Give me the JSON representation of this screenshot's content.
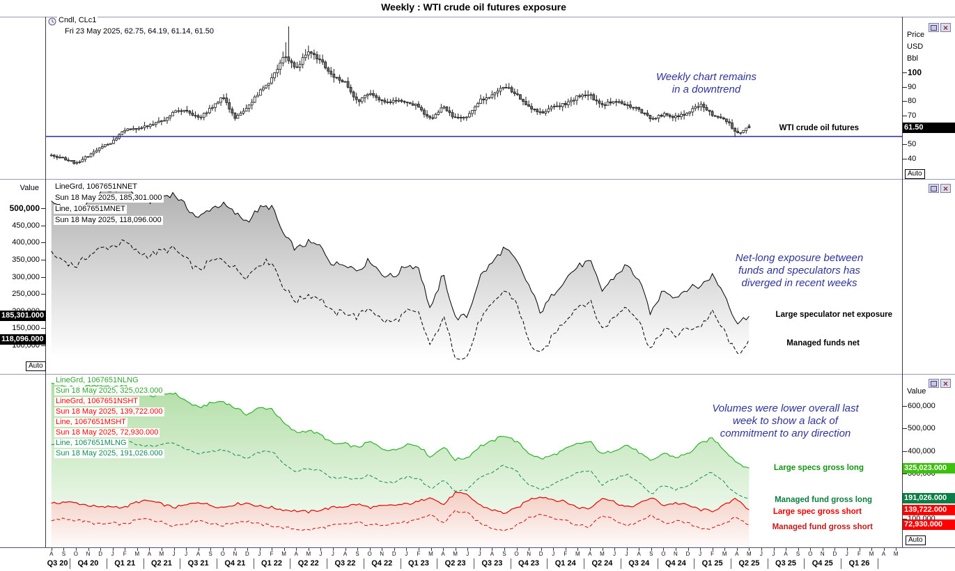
{
  "title": "Weekly : WTI crude oil futures exposure",
  "colors": {
    "annotation_navy": "#2e3499",
    "support_line": "#00007e",
    "candle_down_fill": "#6e6e6e",
    "nnet_line": "#000000",
    "nlng_line": "#2db22d",
    "mlng_line": "#108a5a",
    "short_line": "#e60000",
    "box_black": "#000000",
    "box_bright_green": "#3fbf0f",
    "box_dark_green": "#0b7e47",
    "box_red": "#ff0000"
  },
  "panel1": {
    "legend": [
      "Cndl, CLc1",
      "Fri 23 May 2025, 62.75, 64.19, 61.14, 61.50"
    ],
    "axis_unit": [
      "Price",
      "USD",
      "Bbl"
    ],
    "last_price_label": "61.50",
    "auto_label": "Auto",
    "annotation": [
      "Weekly chart remains",
      "in a downtrend"
    ],
    "series_label": "WTI crude oil futures"
  },
  "panel2": {
    "value_axis_label": "Value",
    "legend": [
      "LineGrd, 1067651NNET",
      "Sun 18 May 2025, 185,301.000",
      "Line, 1067651MNET",
      "Sun 18 May 2025, 118,096.000"
    ],
    "value_boxes": [
      "185,301.000",
      "118,096.000"
    ],
    "auto_label": "Auto",
    "annotation": [
      "Net-long exposure between",
      "funds and speculators has",
      "diverged in recent weeks"
    ],
    "series_labels": [
      "Large speculator net exposure",
      "Managed funds net"
    ]
  },
  "panel3": {
    "value_axis_label": "Value",
    "legend": [
      {
        "text": "LineGrd, 1067651NLNG",
        "color": "#2fa32f"
      },
      {
        "text": "Sun 18 May 2025, 325,023.000",
        "color": "#2fa32f"
      },
      {
        "text": "LineGrd, 1067651NSHT",
        "color": "#ff0000"
      },
      {
        "text": "Sun 18 May 2025, 139,722.000",
        "color": "#ff0000"
      },
      {
        "text": "Line, 1067651MSHT",
        "color": "#ff0000"
      },
      {
        "text": "Sun 18 May 2025, 72,930.000",
        "color": "#ff0000"
      },
      {
        "text": "Line, 1067651MLNG",
        "color": "#108a5a"
      },
      {
        "text": "Sun 18 May 2025, 191,026.000",
        "color": "#108a5a"
      }
    ],
    "value_boxes": [
      {
        "text": "325,023.000",
        "bg": "#3fbf0f"
      },
      {
        "text": "191,026.000",
        "bg": "#0b7e47"
      },
      {
        "text": "139,722.000",
        "bg": "#ff0000"
      },
      {
        "text": "72,930.000",
        "bg": "#ff0000"
      }
    ],
    "auto_label": "Auto",
    "annotation": [
      "Volumes were lower overall last",
      "week to show a lack of",
      "commitment to any direction"
    ],
    "series_labels": [
      {
        "text": "Large specs gross long",
        "color": "#149414"
      },
      {
        "text": "Managed fund gross long",
        "color": "#0d7d3d"
      },
      {
        "text": "Large spec gross short",
        "color": "#ee0000"
      },
      {
        "text": "Managed fund gross short",
        "color": "#c11b1b"
      }
    ]
  },
  "xaxis": {
    "months": [
      "A",
      "S",
      "O",
      "N",
      "D",
      "J",
      "F",
      "M",
      "A",
      "M",
      "J",
      "J",
      "A",
      "S",
      "O",
      "N",
      "D",
      "J",
      "F",
      "M",
      "A",
      "M",
      "J",
      "J",
      "A",
      "S",
      "O",
      "N",
      "D",
      "J",
      "F",
      "M",
      "A",
      "M",
      "J",
      "J",
      "A",
      "S",
      "O",
      "N",
      "D",
      "J",
      "F",
      "M",
      "A",
      "M",
      "J",
      "J",
      "A",
      "S",
      "O",
      "N",
      "D",
      "J",
      "F",
      "M",
      "A",
      "M",
      "J",
      "J",
      "A",
      "S",
      "O",
      "N",
      "D",
      "J",
      "F",
      "M",
      "A",
      "M"
    ],
    "quarters": [
      "Q3 20",
      "Q4 20",
      "Q1 21",
      "Q2 21",
      "Q3 21",
      "Q4 21",
      "Q1 22",
      "Q2 22",
      "Q3 22",
      "Q4 22",
      "Q1 23",
      "Q2 23",
      "Q3 23",
      "Q4 23",
      "Q1 24",
      "Q2 24",
      "Q3 24",
      "Q4 24",
      "Q1 25",
      "Q2 25",
      "Q3 25",
      "Q4 25",
      "Q1 26"
    ]
  },
  "chart_data": [
    {
      "id": "wti-price",
      "type": "candlestick",
      "instrument": "CLc1",
      "period": "Weekly",
      "x_start": "Aug 2020",
      "x_end": "May 2025",
      "ylabel": "Price USD/Bbl",
      "ylim": [
        35,
        135
      ],
      "yticks": [
        {
          "v": 100,
          "label": "100",
          "bold": true
        },
        {
          "v": 90,
          "label": "90"
        },
        {
          "v": 80,
          "label": "80"
        },
        {
          "v": 70,
          "label": "70"
        },
        {
          "v": 60,
          "label": "60"
        },
        {
          "v": 50,
          "label": "50"
        },
        {
          "v": 40,
          "label": "40"
        }
      ],
      "last_ohlc": {
        "date": "Fri 23 May 2025",
        "open": 62.75,
        "high": 64.19,
        "low": 61.14,
        "close": 61.5
      },
      "support_line": 55.5,
      "monthly_closes": [
        42,
        40,
        37,
        42,
        48,
        52,
        60,
        61,
        63,
        66,
        73,
        74,
        68,
        75,
        83,
        68,
        75,
        87,
        95,
        113,
        102,
        115,
        108,
        98,
        93,
        79,
        87,
        80,
        80,
        80,
        76,
        67,
        77,
        68,
        70,
        81,
        84,
        91,
        85,
        76,
        72,
        76,
        78,
        83,
        84,
        77,
        81,
        77,
        74,
        68,
        71,
        69,
        72,
        78,
        70,
        68,
        58,
        61.5
      ]
    },
    {
      "id": "net-exposure",
      "type": "line",
      "x_start": "Aug 2020",
      "x_end": "May 2025",
      "ylim": [
        50000,
        565000
      ],
      "yticks": [
        {
          "v": 500000,
          "label": "500,000",
          "bold": true
        },
        {
          "v": 450000,
          "label": "450,000"
        },
        {
          "v": 400000,
          "label": "400,000"
        },
        {
          "v": 350000,
          "label": "350,000"
        },
        {
          "v": 300000,
          "label": "300,000"
        },
        {
          "v": 250000,
          "label": "250,000"
        },
        {
          "v": 200000,
          "label": "200,000"
        },
        {
          "v": 150000,
          "label": "150,000"
        },
        {
          "v": 100000,
          "label": "100,000"
        }
      ],
      "series": [
        {
          "name": "Large speculator net exposure",
          "code": "1067651NNET",
          "style": "solid",
          "color": "#000000",
          "fill": "gray-gradient",
          "last": 185301,
          "monthly": [
            520000,
            505000,
            490000,
            522000,
            545000,
            552000,
            565000,
            532000,
            520000,
            535000,
            542000,
            505000,
            470000,
            500000,
            512000,
            485000,
            462000,
            500000,
            505000,
            420000,
            380000,
            400000,
            388000,
            335000,
            340000,
            318000,
            350000,
            308000,
            300000,
            335000,
            328000,
            200000,
            310000,
            180000,
            185000,
            300000,
            340000,
            385000,
            345000,
            275000,
            195000,
            250000,
            295000,
            330000,
            345000,
            260000,
            300000,
            335000,
            290000,
            190000,
            265000,
            240000,
            268000,
            272000,
            305000,
            250000,
            165000,
            185301
          ]
        },
        {
          "name": "Managed funds net",
          "code": "1067651MNET",
          "style": "dashed",
          "color": "#000000",
          "last": 118096,
          "monthly": [
            365000,
            348000,
            330000,
            362000,
            382000,
            390000,
            402000,
            372000,
            362000,
            375000,
            382000,
            350000,
            318000,
            345000,
            352000,
            325000,
            300000,
            340000,
            345000,
            268000,
            228000,
            248000,
            238000,
            192000,
            198000,
            182000,
            212000,
            172000,
            168000,
            198000,
            192000,
            95000,
            185000,
            70000,
            65000,
            175000,
            215000,
            262000,
            228000,
            110000,
            70000,
            130000,
            175000,
            215000,
            228000,
            148000,
            182000,
            218000,
            172000,
            85000,
            150000,
            128000,
            150000,
            155000,
            195000,
            140000,
            70000,
            118096
          ]
        }
      ]
    },
    {
      "id": "gross-volumes",
      "type": "line",
      "x_start": "Aug 2020",
      "x_end": "May 2025",
      "ylim": [
        40000,
        710000
      ],
      "yticks": [
        {
          "v": 600000,
          "label": "600,000"
        },
        {
          "v": 500000,
          "label": "500,000"
        },
        {
          "v": 400000,
          "label": "400,000"
        },
        {
          "v": 300000,
          "label": "300,000"
        },
        {
          "v": 200000,
          "label": "200,000"
        },
        {
          "v": 100000,
          "label": "100,000"
        }
      ],
      "series": [
        {
          "name": "Large specs gross long",
          "code": "1067651NLNG",
          "style": "solid",
          "color": "#2db22d",
          "fill": "green-gradient",
          "last": 325023,
          "monthly": [
            700000,
            690000,
            678000,
            688000,
            692000,
            686000,
            692000,
            662000,
            642000,
            652000,
            658000,
            622000,
            592000,
            612000,
            622000,
            592000,
            562000,
            592000,
            588000,
            522000,
            482000,
            492000,
            472000,
            432000,
            432000,
            415000,
            442000,
            412000,
            402000,
            432000,
            425000,
            372000,
            422000,
            362000,
            372000,
            422000,
            442000,
            472000,
            442000,
            392000,
            365000,
            382000,
            408000,
            432000,
            442000,
            385000,
            405000,
            428000,
            395000,
            352000,
            392000,
            372000,
            388000,
            432000,
            458000,
            405000,
            350000,
            325023
          ]
        },
        {
          "name": "Managed fund gross long",
          "code": "1067651MLNG",
          "style": "dashed",
          "color": "#108a5a",
          "last": 191026,
          "monthly": [
            432000,
            425000,
            418000,
            430000,
            440000,
            445000,
            452000,
            430000,
            420000,
            430000,
            436000,
            410000,
            385000,
            400000,
            406000,
            385000,
            365000,
            395000,
            400000,
            340000,
            310000,
            325000,
            315000,
            280000,
            285000,
            274000,
            295000,
            265000,
            260000,
            285000,
            280000,
            230000,
            275000,
            220000,
            230000,
            280000,
            305000,
            338000,
            310000,
            255000,
            228000,
            250000,
            278000,
            305000,
            315000,
            250000,
            275000,
            298000,
            265000,
            210000,
            250000,
            230000,
            245000,
            283000,
            308000,
            258000,
            205000,
            191026
          ]
        },
        {
          "name": "Large spec gross short",
          "code": "1067651NSHT",
          "style": "solid",
          "color": "#e60000",
          "fill": "red-gradient",
          "last": 139722,
          "monthly": [
            165000,
            175000,
            170000,
            160000,
            150000,
            155000,
            150000,
            175000,
            180000,
            165000,
            150000,
            160000,
            175000,
            160000,
            150000,
            165000,
            170000,
            155000,
            150000,
            140000,
            135000,
            130000,
            140000,
            150000,
            155000,
            165000,
            150000,
            155000,
            160000,
            165000,
            175000,
            200000,
            160000,
            215000,
            205000,
            160000,
            140000,
            125000,
            145000,
            185000,
            200000,
            185000,
            175000,
            150000,
            145000,
            195000,
            175000,
            150000,
            165000,
            195000,
            160000,
            170000,
            160000,
            140000,
            135000,
            160000,
            190000,
            139722
          ]
        },
        {
          "name": "Managed fund gross short",
          "code": "1067651MSHT",
          "style": "dashed",
          "color": "#e60000",
          "last": 72930,
          "monthly": [
            90000,
            100000,
            95000,
            85000,
            75000,
            80000,
            75000,
            95000,
            100000,
            85000,
            70000,
            80000,
            95000,
            80000,
            70000,
            85000,
            90000,
            75000,
            70000,
            60000,
            55000,
            50000,
            60000,
            70000,
            75000,
            85000,
            70000,
            75000,
            80000,
            85000,
            95000,
            120000,
            80000,
            135000,
            125000,
            80000,
            60000,
            48000,
            70000,
            105000,
            120000,
            105000,
            95000,
            70000,
            65000,
            115000,
            95000,
            70000,
            85000,
            115000,
            80000,
            90000,
            80000,
            60000,
            55000,
            80000,
            110000,
            72930
          ]
        }
      ]
    }
  ]
}
